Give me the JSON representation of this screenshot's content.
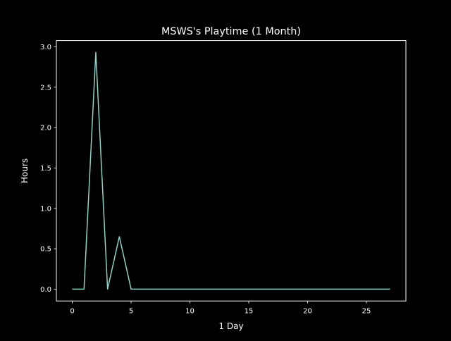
{
  "chart_data": {
    "type": "line",
    "title": "MSWS's Playtime (1 Month)",
    "xlabel": "1 Day",
    "ylabel": "Hours",
    "x": [
      0,
      1,
      2,
      3,
      4,
      5,
      6,
      7,
      8,
      9,
      10,
      11,
      12,
      13,
      14,
      15,
      16,
      17,
      18,
      19,
      20,
      21,
      22,
      23,
      24,
      25,
      26,
      27
    ],
    "series": [
      {
        "values": [
          0,
          0,
          2.93,
          0,
          0.65,
          0,
          0,
          0,
          0,
          0,
          0,
          0,
          0,
          0,
          0,
          0,
          0,
          0,
          0,
          0,
          0,
          0,
          0,
          0,
          0,
          0,
          0,
          0
        ],
        "color": "#8dd3c7"
      }
    ],
    "xlim": [
      -1.35,
      28.35
    ],
    "ylim": [
      -0.1465,
      3.0765
    ],
    "xticks": [
      0,
      5,
      10,
      15,
      20,
      25
    ],
    "xtick_labels": [
      "0",
      "5",
      "10",
      "15",
      "20",
      "25"
    ],
    "yticks": [
      0,
      0.5,
      1.0,
      1.5,
      2.0,
      2.5,
      3.0
    ],
    "ytick_labels": [
      "0.0",
      "0.5",
      "1.0",
      "1.5",
      "2.0",
      "2.5",
      "3.0"
    ],
    "grid": false,
    "legend": "none",
    "background": "#000000",
    "foreground": "#ffffff"
  }
}
